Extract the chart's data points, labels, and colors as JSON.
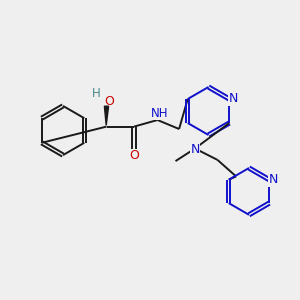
{
  "bg_color": "#efefef",
  "bond_color": "#1a1a1a",
  "bond_lw": 1.4,
  "atom_colors": {
    "N": "#1010cc",
    "O": "#cc0000",
    "H_teal": "#4a8a8a",
    "NH_blue": "#1010cc"
  },
  "fig_w": 3.0,
  "fig_h": 3.0,
  "dpi": 100,
  "xlim": [
    0,
    10
  ],
  "ylim": [
    0,
    10
  ]
}
